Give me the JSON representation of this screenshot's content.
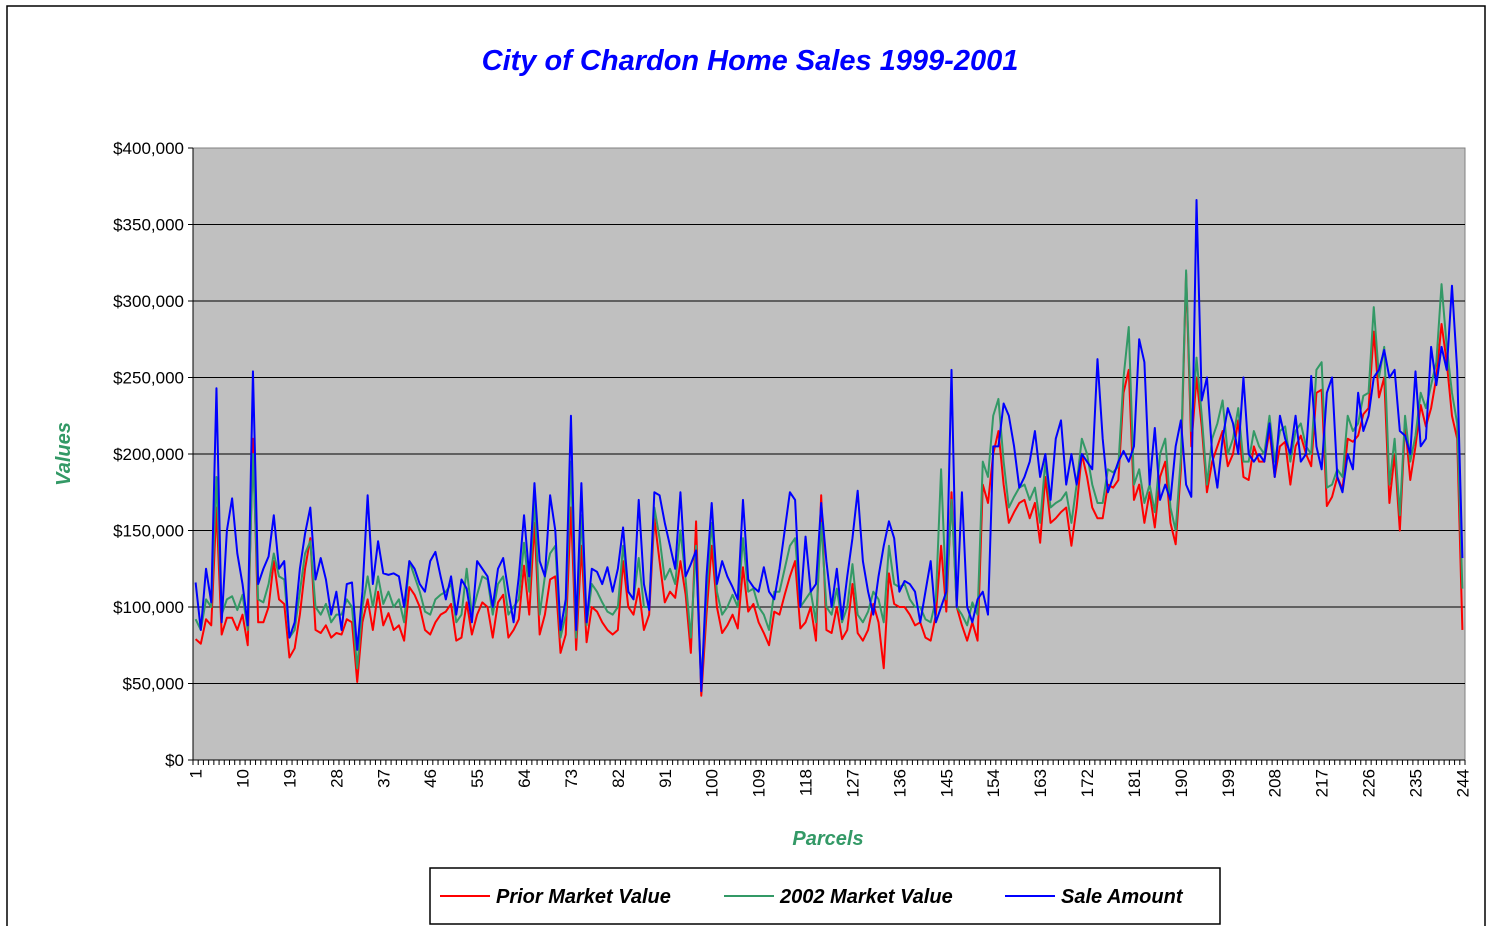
{
  "chart_data": {
    "type": "line",
    "title": "City of Chardon Home Sales 1999-2001",
    "x_label": "Parcels",
    "y_label": "Values",
    "ylim": [
      0,
      400000
    ],
    "yticks": [
      {
        "value": 0,
        "label": "$0"
      },
      {
        "value": 50000,
        "label": "$50,000"
      },
      {
        "value": 100000,
        "label": "$100,000"
      },
      {
        "value": 150000,
        "label": "$150,000"
      },
      {
        "value": 200000,
        "label": "$200,000"
      },
      {
        "value": 250000,
        "label": "$250,000"
      },
      {
        "value": 300000,
        "label": "$300,000"
      },
      {
        "value": 350000,
        "label": "$350,000"
      },
      {
        "value": 400000,
        "label": "$400,000"
      }
    ],
    "grid": true,
    "legend": "bottom",
    "categories": [
      "1",
      null,
      null,
      null,
      null,
      null,
      null,
      null,
      null,
      "10",
      null,
      null,
      null,
      null,
      null,
      null,
      null,
      null,
      "19",
      null,
      null,
      null,
      null,
      null,
      null,
      null,
      null,
      "28",
      null,
      null,
      null,
      null,
      null,
      null,
      null,
      null,
      "37",
      null,
      null,
      null,
      null,
      null,
      null,
      null,
      null,
      "46",
      null,
      null,
      null,
      null,
      null,
      null,
      null,
      null,
      "55",
      null,
      null,
      null,
      null,
      null,
      null,
      null,
      null,
      "64",
      null,
      null,
      null,
      null,
      null,
      null,
      null,
      null,
      "73",
      null,
      null,
      null,
      null,
      null,
      null,
      null,
      null,
      "82",
      null,
      null,
      null,
      null,
      null,
      null,
      null,
      null,
      "91",
      null,
      null,
      null,
      null,
      null,
      null,
      null,
      null,
      "100",
      null,
      null,
      null,
      null,
      null,
      null,
      null,
      null,
      "109",
      null,
      null,
      null,
      null,
      null,
      null,
      null,
      null,
      "118",
      null,
      null,
      null,
      null,
      null,
      null,
      null,
      null,
      "127",
      null,
      null,
      null,
      null,
      null,
      null,
      null,
      null,
      "136",
      null,
      null,
      null,
      null,
      null,
      null,
      null,
      null,
      "145",
      null,
      null,
      null,
      null,
      null,
      null,
      null,
      null,
      "154",
      null,
      null,
      null,
      null,
      null,
      null,
      null,
      null,
      "163",
      null,
      null,
      null,
      null,
      null,
      null,
      null,
      null,
      "172",
      null,
      null,
      null,
      null,
      null,
      null,
      null,
      null,
      "181",
      null,
      null,
      null,
      null,
      null,
      null,
      null,
      null,
      "190",
      null,
      null,
      null,
      null,
      null,
      null,
      null,
      null,
      "199",
      null,
      null,
      null,
      null,
      null,
      null,
      null,
      null,
      "208",
      null,
      null,
      null,
      null,
      null,
      null,
      null,
      null,
      "217",
      null,
      null,
      null,
      null,
      null,
      null,
      null,
      null,
      "226",
      null,
      null,
      null,
      null,
      null,
      null,
      null,
      null,
      "235",
      null,
      null,
      null,
      null,
      null,
      null,
      null,
      null,
      "244"
    ],
    "series": [
      {
        "name": "Prior Market Value",
        "color": "#ff0000",
        "values": [
          79000,
          76000,
          92000,
          88000,
          165000,
          82000,
          93000,
          93000,
          85000,
          95000,
          75000,
          210000,
          90000,
          90000,
          100000,
          130000,
          105000,
          102000,
          67000,
          73000,
          95000,
          125000,
          145000,
          85000,
          83000,
          88000,
          80000,
          83000,
          82000,
          92000,
          90000,
          51000,
          90000,
          105000,
          85000,
          110000,
          88000,
          96000,
          85000,
          88000,
          78000,
          113000,
          108000,
          100000,
          85000,
          82000,
          90000,
          95000,
          97000,
          102000,
          78000,
          80000,
          103000,
          82000,
          95000,
          103000,
          100000,
          80000,
          103000,
          108000,
          80000,
          85000,
          92000,
          127000,
          95000,
          155000,
          82000,
          95000,
          118000,
          120000,
          70000,
          82000,
          165000,
          72000,
          140000,
          77000,
          100000,
          97000,
          90000,
          85000,
          82000,
          85000,
          130000,
          100000,
          95000,
          112000,
          85000,
          95000,
          158000,
          130000,
          103000,
          110000,
          106000,
          130000,
          108000,
          70000,
          156000,
          42000,
          95000,
          140000,
          100000,
          83000,
          88000,
          95000,
          86000,
          126000,
          97000,
          102000,
          90000,
          83000,
          75000,
          97000,
          95000,
          108000,
          120000,
          130000,
          86000,
          90000,
          100000,
          78000,
          173000,
          85000,
          83000,
          100000,
          79000,
          85000,
          115000,
          83000,
          78000,
          85000,
          102000,
          90000,
          60000,
          122000,
          102000,
          100000,
          100000,
          95000,
          88000,
          90000,
          80000,
          78000,
          95000,
          140000,
          97000,
          175000,
          100000,
          88000,
          78000,
          90000,
          78000,
          180000,
          168000,
          200000,
          215000,
          180000,
          155000,
          162000,
          168000,
          170000,
          158000,
          168000,
          142000,
          185000,
          155000,
          158000,
          162000,
          165000,
          140000,
          165000,
          200000,
          185000,
          165000,
          158000,
          158000,
          180000,
          178000,
          183000,
          240000,
          255000,
          170000,
          180000,
          155000,
          175000,
          152000,
          185000,
          195000,
          155000,
          141000,
          190000,
          318000,
          205000,
          250000,
          218000,
          175000,
          195000,
          205000,
          215000,
          192000,
          200000,
          222000,
          185000,
          183000,
          205000,
          195000,
          195000,
          215000,
          185000,
          205000,
          208000,
          180000,
          205000,
          212000,
          200000,
          192000,
          240000,
          242000,
          166000,
          172000,
          185000,
          177000,
          210000,
          208000,
          212000,
          226000,
          230000,
          280000,
          237000,
          250000,
          168000,
          200000,
          150000,
          220000,
          183000,
          205000,
          232000,
          218000,
          230000,
          250000,
          285000,
          260000,
          225000,
          210000,
          85000
        ]
      },
      {
        "name": "2002 Market Value",
        "color": "#339966",
        "values": [
          92000,
          85000,
          105000,
          100000,
          185000,
          95000,
          105000,
          107000,
          98000,
          108000,
          85000,
          200000,
          105000,
          103000,
          115000,
          135000,
          120000,
          118000,
          80000,
          85000,
          110000,
          135000,
          143000,
          100000,
          95000,
          102000,
          90000,
          95000,
          95000,
          105000,
          100000,
          60000,
          100000,
          120000,
          100000,
          120000,
          102000,
          110000,
          100000,
          105000,
          90000,
          130000,
          120000,
          110000,
          97000,
          95000,
          105000,
          108000,
          110000,
          115000,
          90000,
          95000,
          125000,
          95000,
          108000,
          120000,
          118000,
          95000,
          115000,
          120000,
          95000,
          100000,
          105000,
          142000,
          110000,
          170000,
          95000,
          120000,
          135000,
          140000,
          80000,
          95000,
          195000,
          80000,
          160000,
          88000,
          115000,
          110000,
          103000,
          97000,
          95000,
          100000,
          140000,
          110000,
          105000,
          132000,
          100000,
          100000,
          165000,
          145000,
          118000,
          125000,
          115000,
          150000,
          118000,
          80000,
          140000,
          48000,
          108000,
          155000,
          110000,
          95000,
          100000,
          108000,
          100000,
          145000,
          110000,
          112000,
          100000,
          95000,
          85000,
          110000,
          110000,
          125000,
          140000,
          145000,
          100000,
          105000,
          110000,
          90000,
          155000,
          100000,
          95000,
          112000,
          90000,
          100000,
          128000,
          95000,
          90000,
          97000,
          110000,
          105000,
          90000,
          140000,
          115000,
          113000,
          115000,
          105000,
          100000,
          100000,
          92000,
          90000,
          105000,
          190000,
          105000,
          170000,
          100000,
          95000,
          88000,
          103000,
          95000,
          195000,
          185000,
          225000,
          236000,
          195000,
          165000,
          172000,
          178000,
          180000,
          170000,
          178000,
          155000,
          195000,
          165000,
          168000,
          170000,
          175000,
          155000,
          180000,
          210000,
          200000,
          180000,
          168000,
          168000,
          190000,
          188000,
          192000,
          250000,
          283000,
          180000,
          190000,
          168000,
          180000,
          162000,
          200000,
          210000,
          165000,
          150000,
          198000,
          320000,
          215000,
          263000,
          225000,
          180000,
          210000,
          220000,
          235000,
          200000,
          210000,
          230000,
          195000,
          195000,
          215000,
          205000,
          200000,
          225000,
          195000,
          215000,
          218000,
          195000,
          215000,
          220000,
          205000,
          200000,
          255000,
          260000,
          178000,
          180000,
          190000,
          185000,
          225000,
          215000,
          220000,
          238000,
          240000,
          296000,
          250000,
          270000,
          180000,
          210000,
          160000,
          225000,
          195000,
          212000,
          240000,
          230000,
          245000,
          260000,
          311000,
          270000,
          240000,
          220000,
          112000
        ]
      },
      {
        "name": "Sale Amount",
        "color": "#0000ff",
        "values": [
          116000,
          85000,
          125000,
          103000,
          243000,
          90000,
          150000,
          171000,
          135000,
          115000,
          88000,
          254000,
          115000,
          125000,
          133000,
          160000,
          125000,
          130000,
          80000,
          90000,
          125000,
          148000,
          165000,
          118000,
          132000,
          118000,
          95000,
          110000,
          85000,
          115000,
          116000,
          72000,
          110000,
          173000,
          115000,
          143000,
          122000,
          121000,
          122000,
          120000,
          100000,
          130000,
          125000,
          115000,
          110000,
          130000,
          136000,
          120000,
          105000,
          120000,
          95000,
          118000,
          112000,
          90000,
          130000,
          125000,
          120000,
          100000,
          125000,
          132000,
          110000,
          90000,
          120000,
          160000,
          120000,
          181000,
          130000,
          120000,
          173000,
          150000,
          85000,
          105000,
          225000,
          85000,
          181000,
          90000,
          125000,
          123000,
          115000,
          126000,
          110000,
          125000,
          152000,
          110000,
          105000,
          170000,
          115000,
          98000,
          175000,
          173000,
          155000,
          140000,
          125000,
          175000,
          120000,
          128000,
          137000,
          45000,
          120000,
          168000,
          115000,
          130000,
          120000,
          113000,
          105000,
          170000,
          118000,
          113000,
          110000,
          126000,
          110000,
          105000,
          125000,
          150000,
          175000,
          170000,
          100000,
          146000,
          110000,
          115000,
          168000,
          130000,
          100000,
          125000,
          92000,
          120000,
          145000,
          176000,
          130000,
          110000,
          95000,
          120000,
          140000,
          156000,
          145000,
          110000,
          117000,
          115000,
          110000,
          90000,
          110000,
          130000,
          90000,
          100000,
          110000,
          255000,
          100000,
          175000,
          100000,
          90000,
          105000,
          110000,
          95000,
          205000,
          205000,
          233000,
          225000,
          205000,
          178000,
          185000,
          195000,
          215000,
          185000,
          200000,
          170000,
          210000,
          222000,
          180000,
          200000,
          180000,
          200000,
          195000,
          190000,
          262000,
          210000,
          175000,
          185000,
          195000,
          202000,
          195000,
          205000,
          275000,
          260000,
          180000,
          217000,
          170000,
          180000,
          170000,
          205000,
          222000,
          180000,
          172000,
          366000,
          235000,
          250000,
          200000,
          178000,
          210000,
          230000,
          220000,
          200000,
          250000,
          200000,
          195000,
          200000,
          195000,
          220000,
          185000,
          225000,
          210000,
          200000,
          225000,
          195000,
          200000,
          251000,
          205000,
          190000,
          240000,
          250000,
          185000,
          175000,
          200000,
          190000,
          240000,
          215000,
          225000,
          250000,
          255000,
          268000,
          250000,
          255000,
          215000,
          212000,
          200000,
          254000,
          205000,
          210000,
          270000,
          245000,
          270000,
          255000,
          310000,
          255000,
          132000
        ]
      }
    ]
  }
}
